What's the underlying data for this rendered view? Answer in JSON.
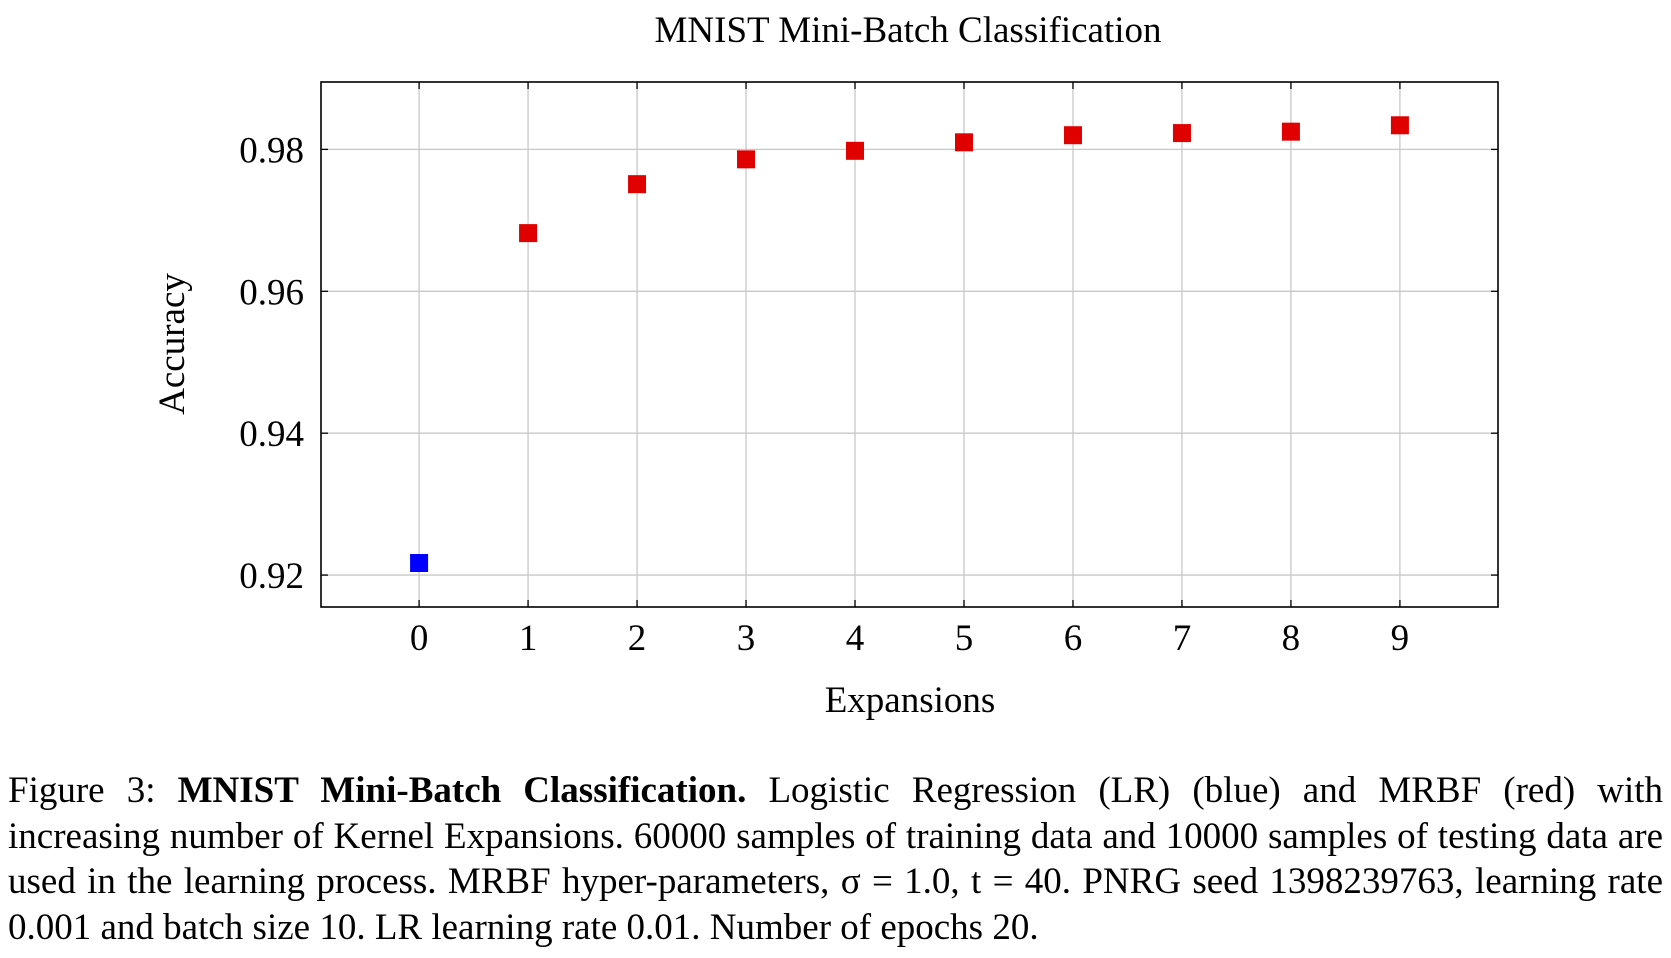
{
  "chart_data": {
    "type": "scatter",
    "title": "MNIST Mini-Batch Classification",
    "xlabel": "Expansions",
    "ylabel": "Accuracy",
    "xlim": [
      -0.9,
      9.9
    ],
    "ylim": [
      0.9155,
      0.9895
    ],
    "x_ticks": [
      0,
      1,
      2,
      3,
      4,
      5,
      6,
      7,
      8,
      9
    ],
    "x_tick_labels": [
      "0",
      "1",
      "2",
      "3",
      "4",
      "5",
      "6",
      "7",
      "8",
      "9"
    ],
    "y_ticks": [
      0.92,
      0.94,
      0.96,
      0.98
    ],
    "y_tick_labels": [
      "0.92",
      "0.94",
      "0.96",
      "0.98"
    ],
    "grid": true,
    "series": [
      {
        "color": "#0000ff",
        "marker": "square",
        "x": [
          0
        ],
        "y": [
          0.9217
        ]
      },
      {
        "color": "#e00000",
        "marker": "square",
        "x": [
          1,
          2,
          3,
          4,
          5,
          6,
          7,
          8,
          9
        ],
        "y": [
          0.9682,
          0.9751,
          0.9786,
          0.9798,
          0.981,
          0.982,
          0.9823,
          0.9825,
          0.9834
        ]
      }
    ]
  },
  "caption": {
    "label": "Figure 3:",
    "lead": "MNIST Mini-Batch Classification.",
    "text": "Logistic Regression (LR) (blue) and MRBF (red) with increasing number of Kernel Expansions. 60000 samples of training data and 10000 samples of testing data are used in the learning process. MRBF hyper-parameters, σ = 1.0, t = 40. PNRG seed 1398239763, learning rate 0.001 and batch size 10. LR learning rate 0.01. Number of epochs 20."
  }
}
